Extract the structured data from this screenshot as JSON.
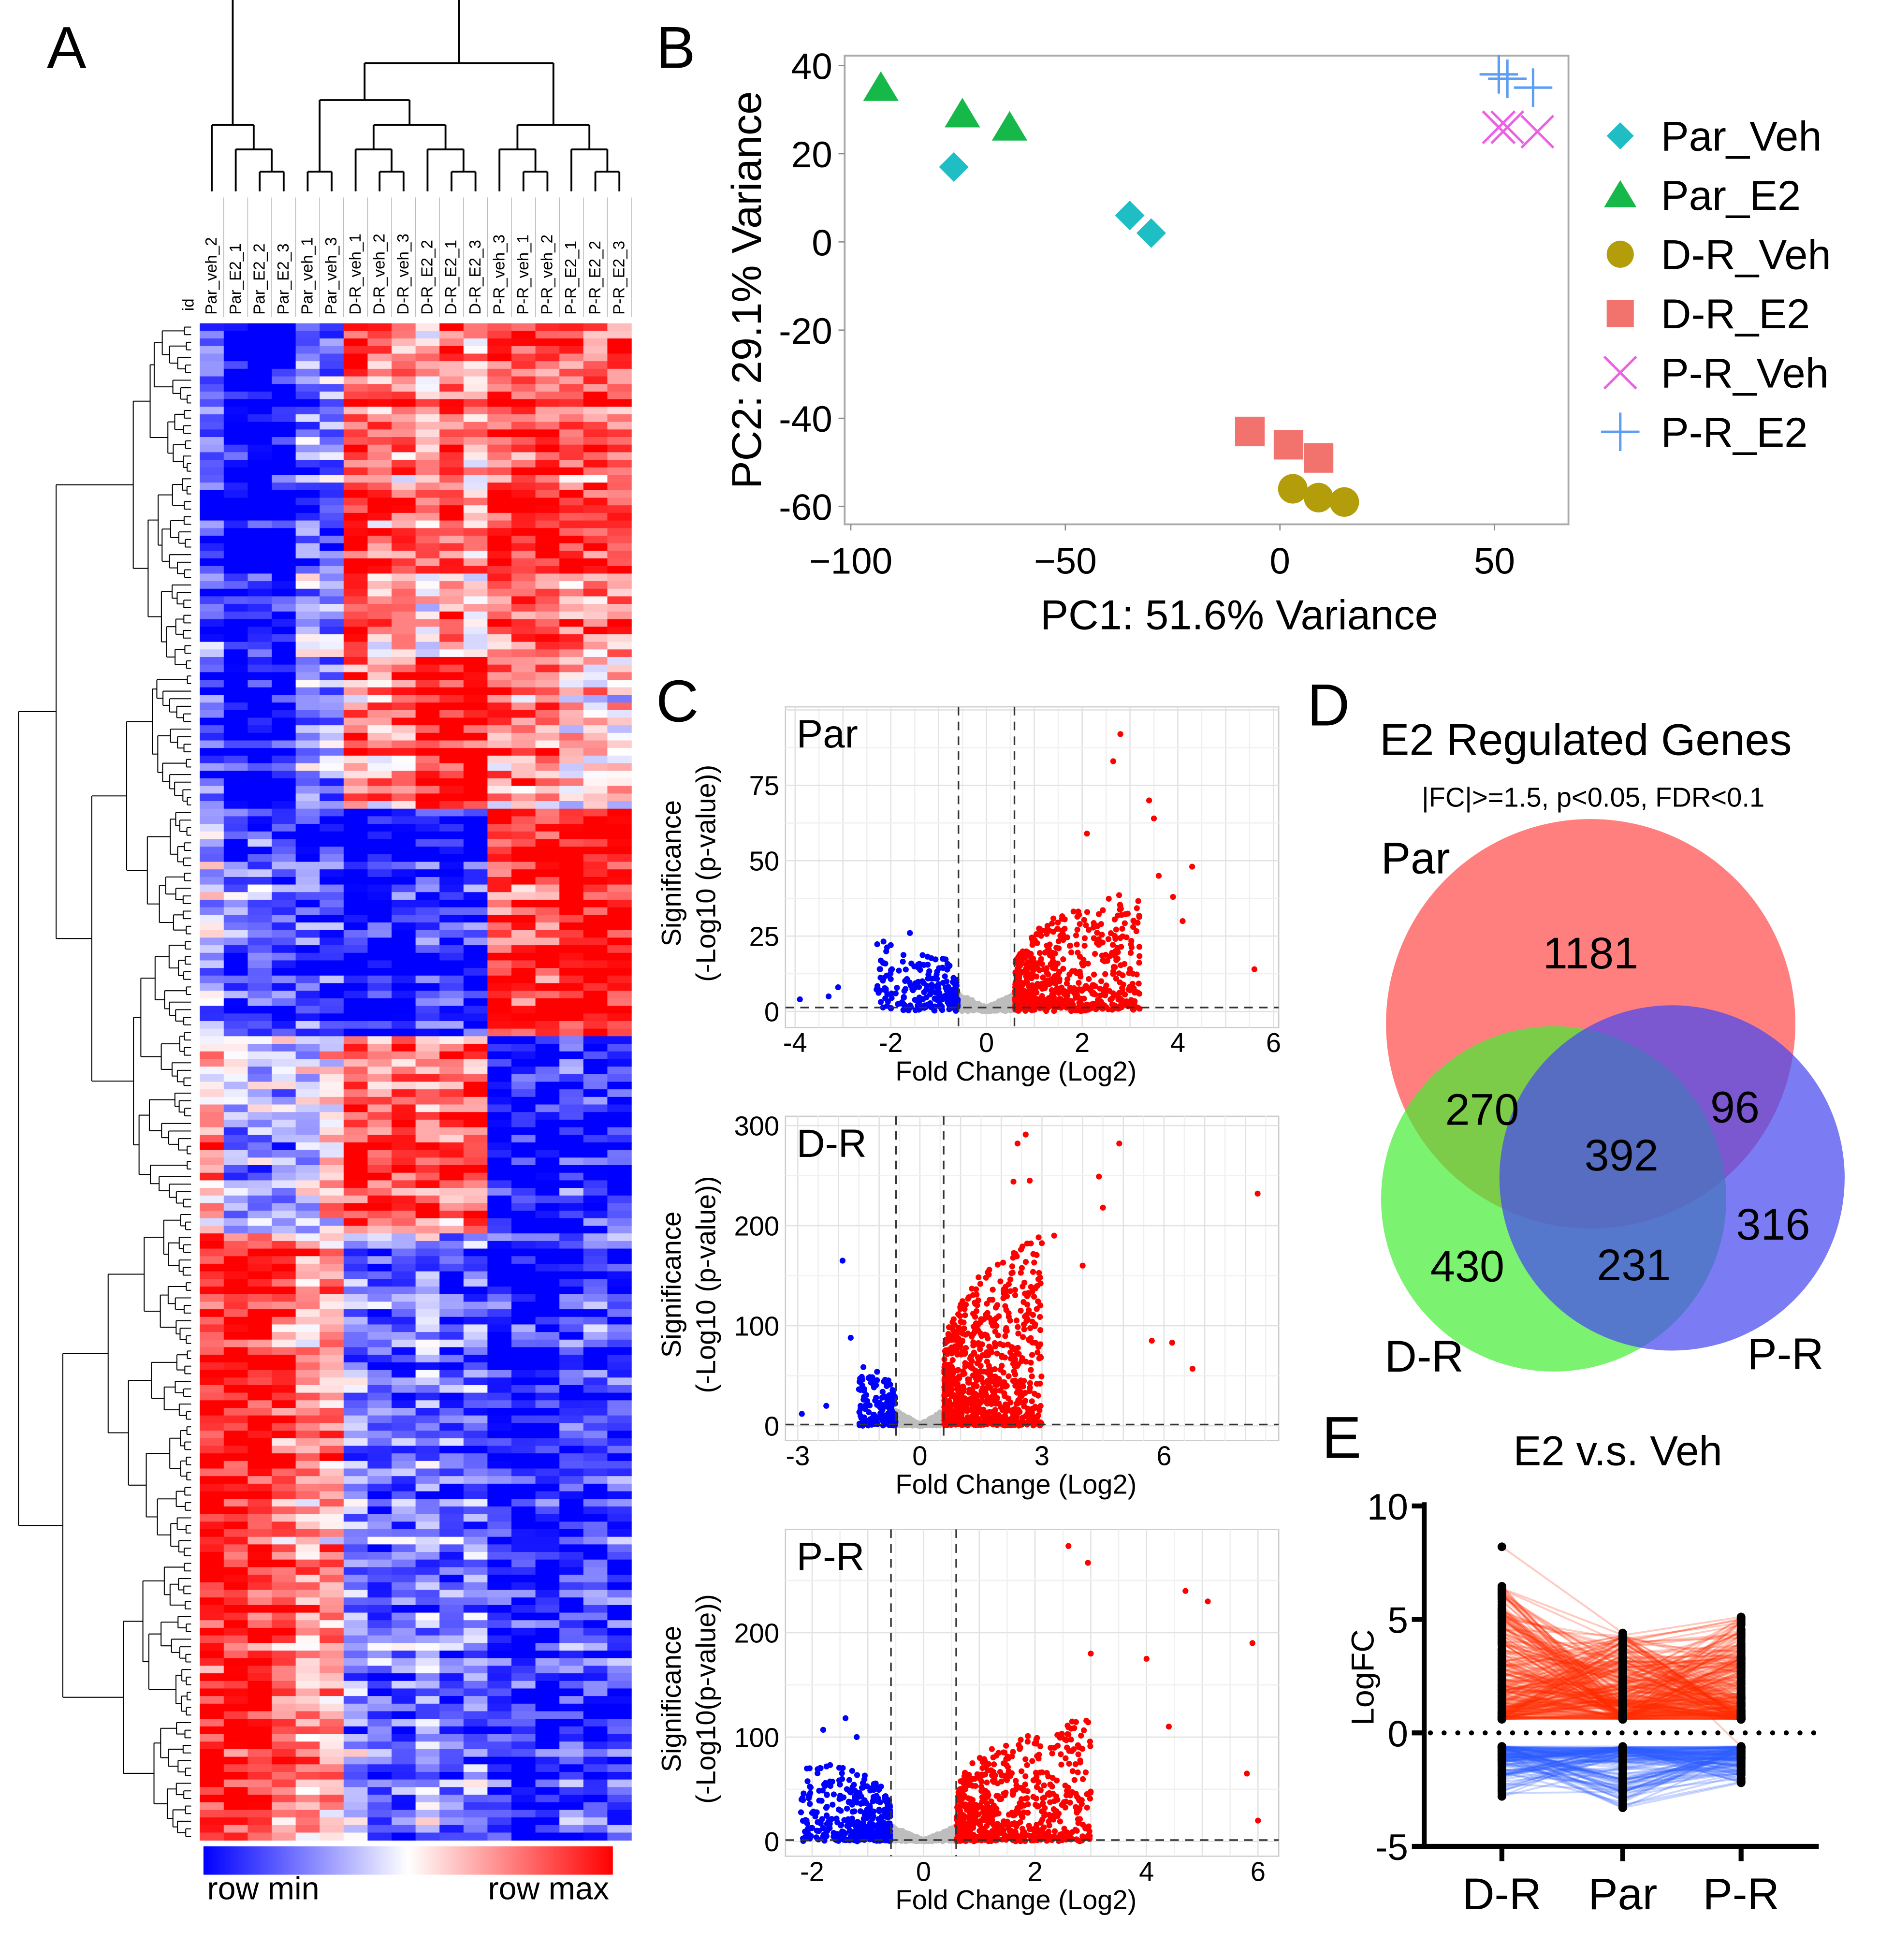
{
  "panels": {
    "A": "A",
    "B": "B",
    "C": "C",
    "D": "D",
    "E": "E"
  },
  "heatmap": {
    "id_label": "id",
    "columns": [
      "Par_veh_2",
      "Par_E2_1",
      "Par_E2_2",
      "Par_E2_3",
      "Par_veh_1",
      "Par_veh_3",
      "D-R_veh_1",
      "D-R_veh_2",
      "D-R_veh_3",
      "D-R_E2_2",
      "D-R_E2_1",
      "D-R_E2_3",
      "P-R_veh_3",
      "P-R_veh_1",
      "P-R_veh_2",
      "P-R_E2_1",
      "P-R_E2_2",
      "P-R_E2_3"
    ],
    "legend_min": "row min",
    "legend_max": "row max",
    "colors": {
      "min": "#0000ff",
      "mid": "#ffffff",
      "max": "#ff0000"
    }
  },
  "chart_data": [
    {
      "type": "heatmap",
      "panel": "A",
      "rows_total": 200,
      "row_clusters": [
        {
          "fraction": 0.22,
          "profile": [
            -0.6,
            -0.9,
            -0.9,
            -0.9,
            -0.4,
            -0.4,
            0.6,
            0.4,
            0.4,
            0.2,
            0.5,
            0.2,
            0.6,
            0.6,
            0.6,
            0.5,
            0.5,
            0.5
          ]
        },
        {
          "fraction": 0.1,
          "profile": [
            -0.5,
            -0.8,
            -0.8,
            -0.8,
            -0.3,
            -0.3,
            0.3,
            0.3,
            0.3,
            0.7,
            0.7,
            0.7,
            0.3,
            0.3,
            0.3,
            0.1,
            0.1,
            0.1
          ]
        },
        {
          "fraction": 0.15,
          "profile": [
            -0.2,
            -0.5,
            -0.5,
            -0.6,
            -0.6,
            -0.6,
            -0.8,
            -0.8,
            -0.8,
            -0.7,
            -0.7,
            -0.7,
            0.6,
            0.6,
            0.6,
            0.8,
            0.8,
            0.8
          ]
        },
        {
          "fraction": 0.13,
          "profile": [
            0.3,
            -0.3,
            -0.3,
            -0.3,
            -0.2,
            0.1,
            0.6,
            0.5,
            0.5,
            0.5,
            0.5,
            0.6,
            -0.8,
            -0.8,
            -0.8,
            -0.7,
            -0.7,
            -0.7
          ]
        },
        {
          "fraction": 0.4,
          "profile": [
            0.7,
            0.7,
            0.7,
            0.5,
            0.3,
            0.3,
            -0.3,
            -0.5,
            -0.5,
            -0.3,
            -0.5,
            -0.4,
            -0.7,
            -0.7,
            -0.7,
            -0.6,
            -0.6,
            -0.6
          ]
        }
      ]
    },
    {
      "type": "scatter",
      "panel": "B",
      "xlabel": "PC1: 51.6% Variance",
      "ylabel": "PC2: 29.1% Variance",
      "xlim": [
        -105,
        67
      ],
      "ylim": [
        -64,
        42
      ],
      "xticks": [
        -100,
        -50,
        0,
        50
      ],
      "yticks": [
        40,
        20,
        0,
        -20,
        -40,
        -60
      ],
      "legend_position": "right",
      "series": [
        {
          "name": "Par_Veh",
          "marker": "diamond",
          "color": "#1fbdc4",
          "points": [
            [
              -76,
              17
            ],
            [
              -35,
              6
            ],
            [
              -30,
              2
            ]
          ]
        },
        {
          "name": "Par_E2",
          "marker": "triangle",
          "color": "#17b84a",
          "points": [
            [
              -93,
              35
            ],
            [
              -74,
              29
            ],
            [
              -63,
              26
            ]
          ]
        },
        {
          "name": "D-R_Veh",
          "marker": "circle",
          "color": "#b39d0a",
          "points": [
            [
              3,
              -56
            ],
            [
              9,
              -58
            ],
            [
              15,
              -59
            ]
          ]
        },
        {
          "name": "D-R_E2",
          "marker": "square",
          "color": "#f2736e",
          "points": [
            [
              -7,
              -43
            ],
            [
              2,
              -46
            ],
            [
              9,
              -49
            ]
          ]
        },
        {
          "name": "P-R_Veh",
          "marker": "x",
          "color": "#ef5fe6",
          "points": [
            [
              51,
              26
            ],
            [
              53,
              26
            ],
            [
              60,
              25
            ]
          ]
        },
        {
          "name": "P-R_E2",
          "marker": "plus",
          "color": "#5c9df5",
          "points": [
            [
              51,
              38
            ],
            [
              53,
              37
            ],
            [
              59,
              35
            ]
          ]
        }
      ]
    },
    {
      "type": "scatter",
      "panel": "C",
      "plots": [
        {
          "name": "Par",
          "xlabel": "Fold Change (Log2)",
          "ylabel_1": "Significance",
          "ylabel_2": "(-Log10 (p-value))",
          "xticks": [
            -4,
            -2,
            0,
            2,
            4,
            6
          ],
          "yticks": [
            0,
            25,
            50,
            75
          ],
          "xlim": [
            -4.2,
            6.2
          ],
          "ylim": [
            -3,
            98
          ],
          "fc_threshold": 0.585,
          "p_threshold": 1.3,
          "n_up": 650,
          "n_down": 220,
          "n_ns": 700,
          "up_x": [
            0.6,
            3.2
          ],
          "up_ymax": 40,
          "down_x": [
            -2.3,
            -0.6
          ],
          "down_ymax": 22,
          "outliers_up": [
            [
              2.8,
              92
            ],
            [
              2.65,
              83
            ],
            [
              3.4,
              70
            ],
            [
              3.5,
              64
            ],
            [
              4.3,
              48
            ],
            [
              5.6,
              14
            ],
            [
              2.1,
              59
            ],
            [
              3.9,
              38
            ],
            [
              4.1,
              30
            ],
            [
              3.6,
              45
            ]
          ],
          "outliers_down": [
            [
              -3.9,
              4
            ],
            [
              -3.1,
              8
            ],
            [
              -3.3,
              5
            ],
            [
              -2.0,
              22
            ],
            [
              -1.6,
              26
            ]
          ]
        },
        {
          "name": "D-R",
          "xlabel": "Fold Change (Log2)",
          "ylabel_1": "Significance",
          "ylabel_2": "(-Log10 (p-value))",
          "xticks": [
            -3,
            0,
            3,
            6
          ],
          "yticks": [
            0,
            100,
            200,
            300
          ],
          "xlim": [
            -3.3,
            8.8
          ],
          "ylim": [
            -15,
            300
          ],
          "fc_threshold": 0.585,
          "p_threshold": 1.3,
          "n_up": 900,
          "n_down": 160,
          "n_ns": 700,
          "up_x": [
            0.6,
            3.0
          ],
          "up_ymax": 190,
          "down_x": [
            -1.5,
            -0.6
          ],
          "down_ymax": 60,
          "outliers_up": [
            [
              2.6,
              291
            ],
            [
              2.4,
              282
            ],
            [
              4.9,
              282
            ],
            [
              2.3,
              244
            ],
            [
              2.7,
              245
            ],
            [
              4.4,
              249
            ],
            [
              8.3,
              232
            ],
            [
              4.5,
              218
            ],
            [
              5.7,
              85
            ],
            [
              6.2,
              83
            ],
            [
              6.7,
              57
            ],
            [
              3.3,
              190
            ],
            [
              4.0,
              160
            ]
          ],
          "outliers_down": [
            [
              -1.9,
              165
            ],
            [
              -1.7,
              88
            ],
            [
              -2.9,
              12
            ],
            [
              -2.3,
              20
            ]
          ]
        },
        {
          "name": "P-R",
          "xlabel": "Fold Change (Log2)",
          "ylabel_1": "Significance",
          "ylabel_2": "(-Log10(p-value))",
          "xticks": [
            -2,
            0,
            2,
            4,
            6
          ],
          "yticks": [
            0,
            100,
            200
          ],
          "xlim": [
            -2.5,
            6.3
          ],
          "ylim": [
            -15,
            290
          ],
          "fc_threshold": 0.585,
          "p_threshold": 1.3,
          "n_up": 650,
          "n_down": 380,
          "n_ns": 700,
          "up_x": [
            0.6,
            3.0
          ],
          "up_ymax": 120,
          "down_x": [
            -2.2,
            -0.6
          ],
          "down_ymax": 80,
          "outliers_up": [
            [
              2.6,
              283
            ],
            [
              2.95,
              267
            ],
            [
              4.7,
              240
            ],
            [
              5.1,
              230
            ],
            [
              5.9,
              190
            ],
            [
              4.0,
              175
            ],
            [
              3.0,
              180
            ],
            [
              4.4,
              110
            ],
            [
              5.8,
              65
            ],
            [
              6.0,
              20
            ]
          ],
          "outliers_down": [
            [
              -1.4,
              118
            ],
            [
              -1.8,
              107
            ],
            [
              -1.2,
              100
            ],
            [
              -2.1,
              20
            ]
          ]
        }
      ]
    },
    {
      "type": "venn",
      "panel": "D",
      "title": "E2 Regulated Genes",
      "subtitle": "|FC|>=1.5, p<0.05, FDR<0.1",
      "sets": [
        {
          "name": "Par",
          "color": "#ff5a5a"
        },
        {
          "name": "D-R",
          "color": "#44ee33"
        },
        {
          "name": "P-R",
          "color": "#4848f0"
        }
      ],
      "regions": {
        "Par_only": "1181",
        "Par_DR": "270",
        "Par_PR": "96",
        "all": "392",
        "PR_only": "316",
        "DR_only": "430",
        "DR_PR": "231"
      }
    },
    {
      "type": "line",
      "panel": "E",
      "title": "E2 v.s. Veh",
      "ylabel": "LogFC",
      "categories": [
        "D-R",
        "Par",
        "P-R"
      ],
      "ylim": [
        -5,
        10
      ],
      "yticks": [
        10,
        5,
        0,
        -5
      ],
      "reference_line": 0,
      "n_up_genes": 260,
      "n_down_genes": 130,
      "up_max": [
        8.2,
        4.4,
        6.0
      ],
      "down_min": [
        -2.8,
        -3.3,
        -2.2
      ],
      "colors": {
        "up": "#ff2a00",
        "down": "#0033ff",
        "points": "#000000"
      }
    }
  ]
}
